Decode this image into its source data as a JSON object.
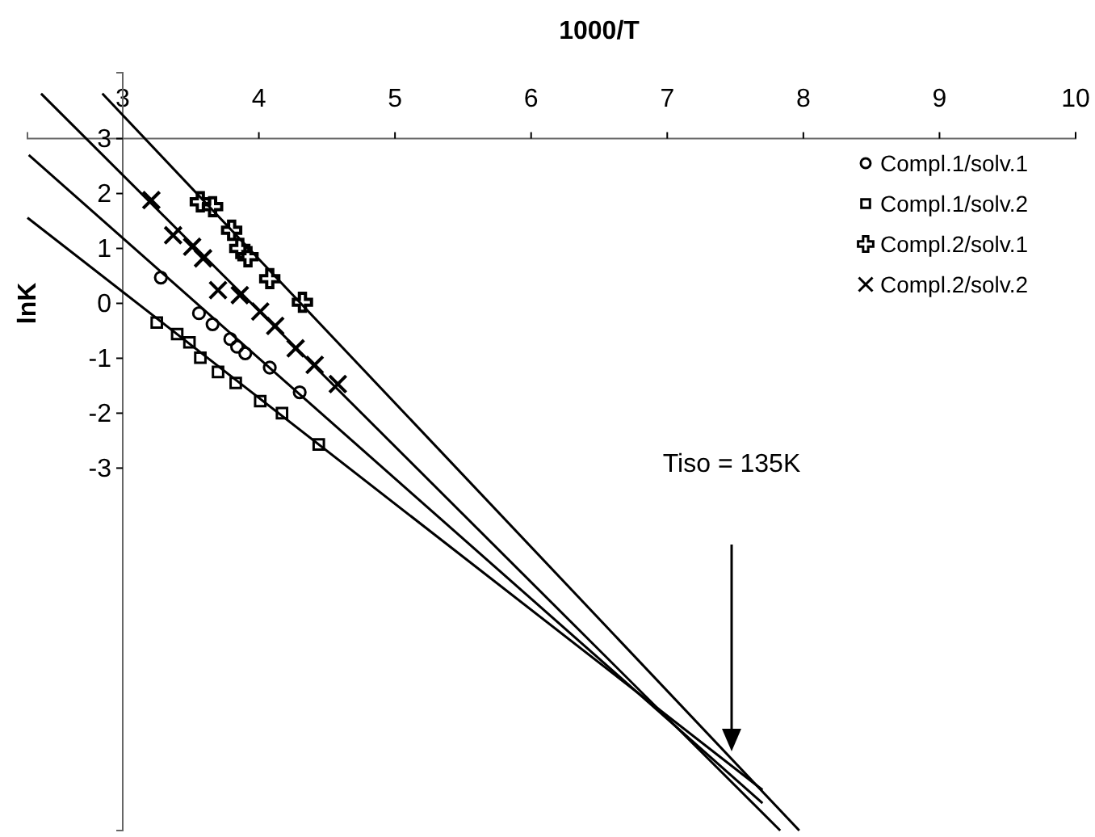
{
  "chart_data": {
    "type": "scatter",
    "xlabel": "1000/T",
    "ylabel": "lnK",
    "xlim": [
      2.3,
      10
    ],
    "ylim": [
      -9.6,
      4.2
    ],
    "xticks": [
      3,
      4,
      5,
      6,
      7,
      8,
      9,
      10
    ],
    "yticks": [
      -3,
      -2,
      -1,
      0,
      1,
      2,
      3
    ],
    "grid": false,
    "legend": "top right",
    "annotations": [
      "Tiso = 135K"
    ],
    "series": [
      {
        "name": "Compl.1/solv.1",
        "type": "scatter",
        "marker": "circle",
        "color": "#000000",
        "x": [
          3.28,
          3.56,
          3.66,
          3.79,
          3.84,
          3.9,
          4.08,
          4.3
        ],
        "values": [
          0.47,
          -0.18,
          -0.38,
          -0.65,
          -0.79,
          -0.91,
          -1.17,
          -1.62
        ]
      },
      {
        "name": "Compl.1/solv.2",
        "type": "scatter",
        "marker": "square",
        "color": "#000000",
        "x": [
          3.25,
          3.4,
          3.49,
          3.57,
          3.7,
          3.83,
          4.01,
          4.17,
          4.44
        ],
        "values": [
          -0.35,
          -0.56,
          -0.71,
          -0.99,
          -1.25,
          -1.45,
          -1.78,
          -2.0,
          -2.57
        ]
      },
      {
        "name": "Compl.2/solv.1",
        "type": "scatter",
        "marker": "cross",
        "color": "#000000",
        "x": [
          3.57,
          3.66,
          3.8,
          3.86,
          3.92,
          4.08,
          4.32
        ],
        "values": [
          1.85,
          1.76,
          1.33,
          1.0,
          0.85,
          0.45,
          0.02
        ]
      },
      {
        "name": "Compl.2/solv.2",
        "type": "scatter",
        "marker": "x",
        "color": "#000000",
        "x": [
          3.21,
          3.37,
          3.51,
          3.59,
          3.7,
          3.86,
          4.01,
          4.12,
          4.27,
          4.41,
          4.58
        ],
        "values": [
          1.88,
          1.24,
          1.03,
          0.82,
          0.24,
          0.15,
          -0.15,
          -0.41,
          -0.82,
          -1.12,
          -1.47
        ]
      },
      {
        "type": "line",
        "marker": "none",
        "color": "#000000",
        "x": [
          2.85,
          7.97
        ],
        "values": [
          3.82,
          -9.6
        ]
      },
      {
        "type": "line",
        "marker": "none",
        "color": "#000000",
        "x": [
          2.4,
          7.83
        ],
        "values": [
          3.82,
          -9.6
        ]
      },
      {
        "type": "line",
        "marker": "none",
        "color": "#000000",
        "x": [
          2.31,
          7.7
        ],
        "values": [
          2.7,
          -9.1
        ]
      },
      {
        "type": "line",
        "marker": "none",
        "color": "#000000",
        "x": [
          2.3,
          7.7
        ],
        "values": [
          1.56,
          -8.86
        ]
      }
    ]
  }
}
